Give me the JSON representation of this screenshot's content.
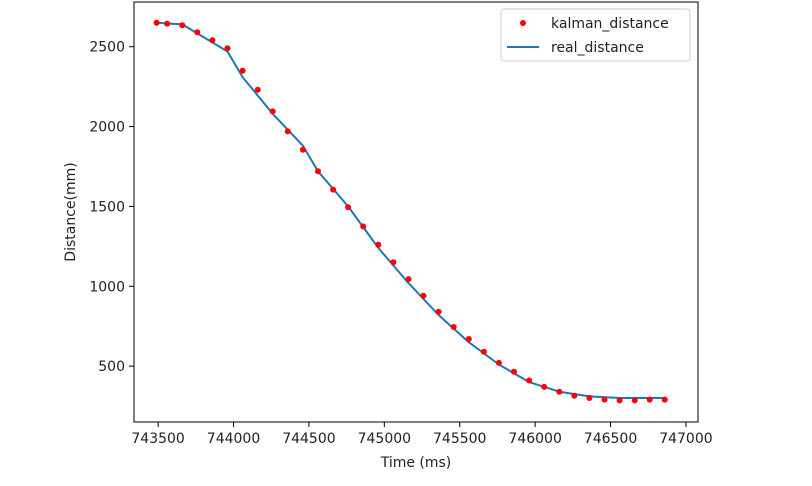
{
  "chart_data": {
    "type": "line",
    "xlabel": "Time (ms)",
    "ylabel": "Distance(mm)",
    "xlim": [
      743340,
      747080
    ],
    "ylim": [
      150,
      2780
    ],
    "xticks": [
      743500,
      744000,
      744500,
      745000,
      745500,
      746000,
      746500,
      747000
    ],
    "yticks": [
      500,
      1000,
      1500,
      2000,
      2500
    ],
    "grid": false,
    "legend_position": "top-right",
    "series": [
      {
        "name": "kalman_distance",
        "style": "markers",
        "color": "#ff0000",
        "x": [
          743490,
          743560,
          743660,
          743760,
          743860,
          743960,
          744060,
          744160,
          744260,
          744360,
          744460,
          744560,
          744660,
          744760,
          744860,
          744960,
          745060,
          745160,
          745260,
          745360,
          745460,
          745560,
          745660,
          745760,
          745860,
          745960,
          746060,
          746160,
          746260,
          746360,
          746460,
          746560,
          746660,
          746760,
          746860
        ],
        "y": [
          2650,
          2645,
          2635,
          2590,
          2540,
          2490,
          2350,
          2230,
          2095,
          1970,
          1855,
          1720,
          1605,
          1495,
          1375,
          1260,
          1150,
          1045,
          940,
          840,
          745,
          670,
          590,
          520,
          465,
          410,
          370,
          340,
          315,
          300,
          290,
          285,
          285,
          290,
          290
        ]
      },
      {
        "name": "real_distance",
        "style": "line",
        "color": "#1f77b4",
        "x": [
          743490,
          743660,
          743960,
          744060,
          744260,
          744460,
          744560,
          744760,
          744960,
          745160,
          745360,
          745560,
          745760,
          745960,
          746160,
          746360,
          746560,
          746760,
          746860
        ],
        "y": [
          2650,
          2640,
          2470,
          2310,
          2080,
          1880,
          1720,
          1500,
          1240,
          1020,
          820,
          650,
          510,
          400,
          340,
          310,
          300,
          300,
          300
        ]
      }
    ]
  }
}
